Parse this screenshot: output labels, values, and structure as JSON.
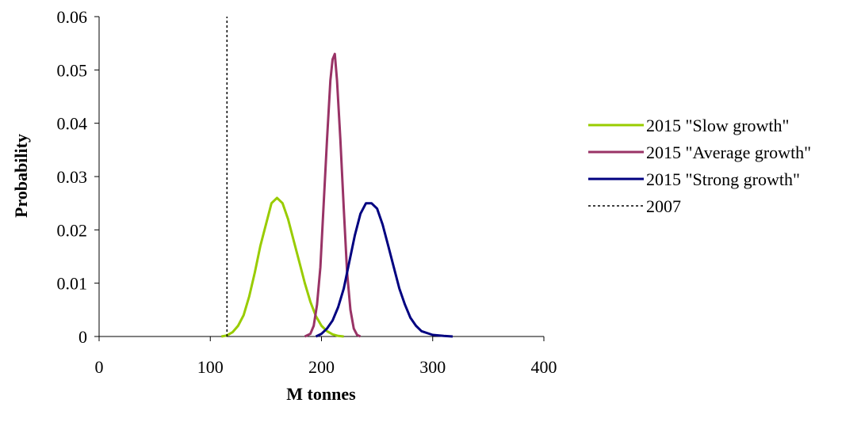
{
  "chart_data": {
    "type": "line",
    "title": "",
    "xlabel": "M tonnes",
    "ylabel": "Probability",
    "xlim": [
      0,
      400
    ],
    "ylim": [
      0,
      0.06
    ],
    "x_ticks": [
      "0",
      "100",
      "200",
      "300",
      "400"
    ],
    "y_ticks": [
      "0",
      "0.01",
      "0.02",
      "0.03",
      "0.04",
      "0.05",
      "0.06"
    ],
    "grid": false,
    "legend_position": "right",
    "series": [
      {
        "name": "2015 \"Slow growth\"",
        "color": "#99cc00",
        "style": "solid",
        "points": [
          [
            110,
            0
          ],
          [
            115,
            0.0002
          ],
          [
            120,
            0.0008
          ],
          [
            125,
            0.002
          ],
          [
            130,
            0.004
          ],
          [
            135,
            0.0075
          ],
          [
            140,
            0.012
          ],
          [
            145,
            0.017
          ],
          [
            150,
            0.021
          ],
          [
            155,
            0.025
          ],
          [
            160,
            0.026
          ],
          [
            165,
            0.025
          ],
          [
            170,
            0.022
          ],
          [
            175,
            0.018
          ],
          [
            180,
            0.014
          ],
          [
            185,
            0.01
          ],
          [
            190,
            0.0065
          ],
          [
            195,
            0.0038
          ],
          [
            200,
            0.002
          ],
          [
            205,
            0.001
          ],
          [
            210,
            0.0004
          ],
          [
            215,
            0.0001
          ],
          [
            220,
            0
          ]
        ]
      },
      {
        "name": "2015 \"Average growth\"",
        "color": "#993366",
        "style": "solid",
        "points": [
          [
            185,
            0
          ],
          [
            190,
            0.0005
          ],
          [
            193,
            0.002
          ],
          [
            196,
            0.006
          ],
          [
            199,
            0.013
          ],
          [
            202,
            0.025
          ],
          [
            205,
            0.037
          ],
          [
            208,
            0.048
          ],
          [
            210,
            0.052
          ],
          [
            212,
            0.053
          ],
          [
            214,
            0.048
          ],
          [
            217,
            0.037
          ],
          [
            220,
            0.024
          ],
          [
            223,
            0.012
          ],
          [
            226,
            0.005
          ],
          [
            229,
            0.0015
          ],
          [
            232,
            0.0003
          ],
          [
            235,
            0
          ]
        ]
      },
      {
        "name": "2015 \"Strong growth\"",
        "color": "#000080",
        "style": "solid",
        "points": [
          [
            195,
            0
          ],
          [
            200,
            0.0005
          ],
          [
            205,
            0.0015
          ],
          [
            210,
            0.003
          ],
          [
            215,
            0.0055
          ],
          [
            220,
            0.009
          ],
          [
            225,
            0.014
          ],
          [
            230,
            0.019
          ],
          [
            235,
            0.023
          ],
          [
            240,
            0.025
          ],
          [
            245,
            0.025
          ],
          [
            250,
            0.024
          ],
          [
            255,
            0.021
          ],
          [
            260,
            0.017
          ],
          [
            265,
            0.013
          ],
          [
            270,
            0.009
          ],
          [
            275,
            0.006
          ],
          [
            280,
            0.0035
          ],
          [
            285,
            0.002
          ],
          [
            290,
            0.001
          ],
          [
            300,
            0.0003
          ],
          [
            310,
            0.0001
          ],
          [
            318,
            0
          ]
        ]
      },
      {
        "name": "2007",
        "color": "#000000",
        "style": "dotted",
        "points": [
          [
            115,
            0
          ],
          [
            115,
            0.06
          ]
        ]
      }
    ]
  }
}
